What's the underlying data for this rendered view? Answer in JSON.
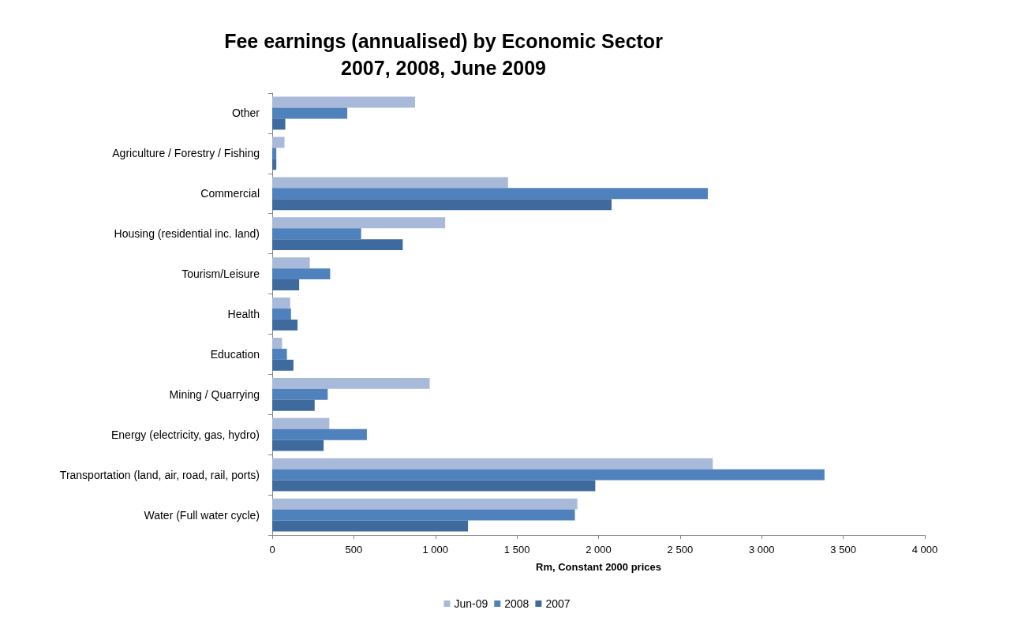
{
  "chart_data": {
    "type": "bar",
    "orientation": "horizontal",
    "title": "Fee earnings (annualised) by Economic Sector\n2007, 2008, June 2009",
    "xlabel": "Rm, Constant 2000 prices",
    "categories": [
      "Other",
      "Agriculture / Forestry / Fishing",
      "Commercial",
      "Housing (residential inc. land)",
      "Tourism/Leisure",
      "Health",
      "Education",
      "Mining / Quarrying",
      "Energy (electricity, gas, hydro)",
      "Transportation (land, air, road, rail, ports)",
      "Water (Full water cycle)"
    ],
    "series": [
      {
        "name": "Jun-09",
        "color": "#a9b9d9",
        "values": [
          875,
          75,
          1445,
          1060,
          230,
          110,
          60,
          965,
          350,
          2700,
          1870
        ]
      },
      {
        "name": "2008",
        "color": "#4f81bd",
        "values": [
          460,
          25,
          2670,
          545,
          355,
          115,
          90,
          340,
          580,
          3385,
          1855
        ]
      },
      {
        "name": "2007",
        "color": "#3f6a9e",
        "values": [
          80,
          25,
          2080,
          800,
          165,
          155,
          130,
          260,
          315,
          1980,
          1200
        ]
      }
    ],
    "xlim": [
      0,
      4000
    ],
    "xticks": [
      0,
      500,
      {
        "value": 1000,
        "label": "1 000"
      },
      {
        "value": 1500,
        "label": "1 500"
      },
      {
        "value": 2000,
        "label": "2 000"
      },
      {
        "value": 2500,
        "label": "2 500"
      },
      {
        "value": 3000,
        "label": "3 000"
      },
      {
        "value": 3500,
        "label": "3 500"
      },
      {
        "value": 4000,
        "label": "4 000"
      }
    ],
    "grid": false,
    "legend": "bottom"
  }
}
